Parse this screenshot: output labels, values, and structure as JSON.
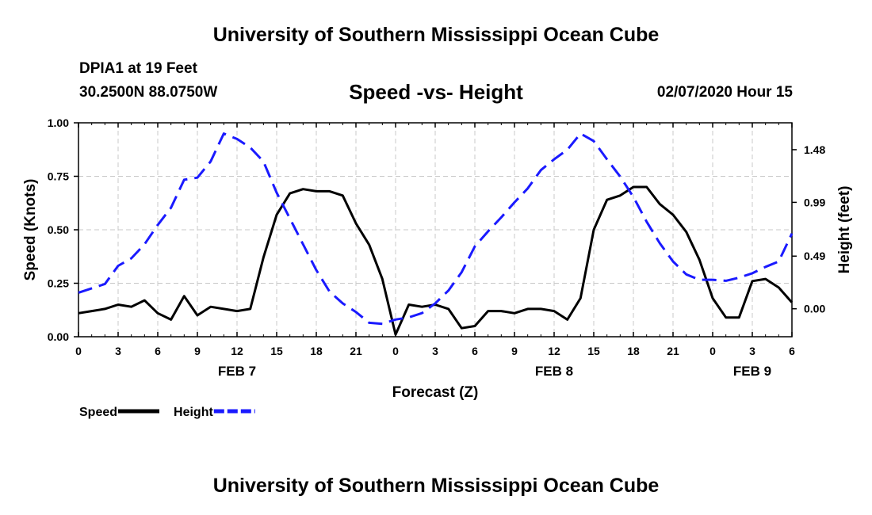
{
  "header": {
    "top_title": "University of Southern Mississippi Ocean Cube",
    "station": "DPIA1 at 19 Feet",
    "coords": "30.2500N 88.0750W",
    "datetime": "02/07/2020 Hour 15"
  },
  "footer": {
    "bottom_title": "University of Southern Mississippi Ocean Cube"
  },
  "colors": {
    "speed": "#000000",
    "height": "#1a1aff",
    "grid": "#c8c8c8"
  },
  "chart_data": {
    "type": "line",
    "title": "Speed -vs- Height",
    "xlabel": "Forecast (Z)",
    "ylabel": "Speed (Knots)",
    "y2label": "Height (feet)",
    "x_unit": "forecast hour from Feb 7 00Z",
    "xlim": [
      0,
      54
    ],
    "ylim": [
      0,
      1
    ],
    "y2lim": [
      -0.26,
      1.73
    ],
    "x_ticks": [
      0,
      3,
      6,
      9,
      12,
      15,
      18,
      21,
      24,
      27,
      30,
      33,
      36,
      39,
      42,
      45,
      48,
      51,
      54
    ],
    "x_tick_labels": [
      "0",
      "3",
      "6",
      "9",
      "12",
      "15",
      "18",
      "21",
      "0",
      "3",
      "6",
      "9",
      "12",
      "15",
      "18",
      "21",
      "0",
      "3",
      "6"
    ],
    "day_labels": [
      {
        "x": 12,
        "label": "FEB 7"
      },
      {
        "x": 36,
        "label": "FEB 8"
      },
      {
        "x": 51,
        "label": "FEB 9"
      }
    ],
    "y_ticks": [
      0,
      0.25,
      0.5,
      0.75,
      1
    ],
    "y_tick_labels": [
      "0.00",
      "0.25",
      "0.50",
      "0.75",
      "1.00"
    ],
    "y2_ticks": [
      0,
      0.49,
      0.99,
      1.48
    ],
    "y2_tick_labels": [
      "0.00",
      "0.49",
      "0.99",
      "1.48"
    ],
    "grid": true,
    "legend": [
      {
        "label": "Speed",
        "series": "speed"
      },
      {
        "label": "Height",
        "series": "height"
      }
    ],
    "series": [
      {
        "name": "Speed",
        "key": "speed",
        "axis": "left",
        "style": "solid",
        "x": [
          0,
          1,
          2,
          3,
          4,
          5,
          6,
          7,
          8,
          9,
          10,
          11,
          12,
          13,
          14,
          15,
          16,
          17,
          18,
          19,
          20,
          21,
          22,
          23,
          24,
          25,
          26,
          27,
          28,
          29,
          30,
          31,
          32,
          33,
          34,
          35,
          36,
          37,
          38,
          39,
          40,
          41,
          42,
          43,
          44,
          45,
          46,
          47,
          48,
          49,
          50,
          51,
          52,
          53,
          54
        ],
        "values": [
          0.11,
          0.12,
          0.13,
          0.15,
          0.14,
          0.17,
          0.11,
          0.08,
          0.19,
          0.1,
          0.14,
          0.13,
          0.12,
          0.13,
          0.37,
          0.57,
          0.67,
          0.69,
          0.68,
          0.68,
          0.66,
          0.53,
          0.43,
          0.27,
          0.01,
          0.15,
          0.14,
          0.15,
          0.13,
          0.04,
          0.05,
          0.12,
          0.12,
          0.11,
          0.13,
          0.13,
          0.12,
          0.08,
          0.18,
          0.5,
          0.64,
          0.66,
          0.7,
          0.7,
          0.62,
          0.57,
          0.49,
          0.36,
          0.18,
          0.09,
          0.09,
          0.26,
          0.27,
          0.23,
          0.16
        ]
      },
      {
        "name": "Height",
        "key": "height",
        "axis": "right",
        "style": "dashed",
        "x": [
          0,
          1,
          2,
          3,
          4,
          5,
          6,
          7,
          8,
          9,
          10,
          11,
          12,
          13,
          14,
          15,
          16,
          17,
          18,
          19,
          20,
          21,
          22,
          23,
          24,
          25,
          26,
          27,
          28,
          29,
          30,
          31,
          32,
          33,
          34,
          35,
          36,
          37,
          38,
          39,
          40,
          41,
          42,
          43,
          44,
          45,
          46,
          47,
          48,
          49,
          50,
          51,
          52,
          53,
          54
        ],
        "values": [
          0.15,
          0.19,
          0.23,
          0.4,
          0.47,
          0.6,
          0.78,
          0.94,
          1.2,
          1.22,
          1.37,
          1.63,
          1.58,
          1.5,
          1.37,
          1.08,
          0.84,
          0.6,
          0.36,
          0.16,
          0.05,
          -0.03,
          -0.13,
          -0.14,
          -0.1,
          -0.08,
          -0.04,
          0.05,
          0.17,
          0.34,
          0.58,
          0.72,
          0.85,
          0.99,
          1.12,
          1.29,
          1.39,
          1.48,
          1.63,
          1.56,
          1.39,
          1.23,
          1.04,
          0.81,
          0.61,
          0.44,
          0.32,
          0.27,
          0.27,
          0.26,
          0.29,
          0.33,
          0.39,
          0.44,
          0.7
        ]
      }
    ]
  }
}
